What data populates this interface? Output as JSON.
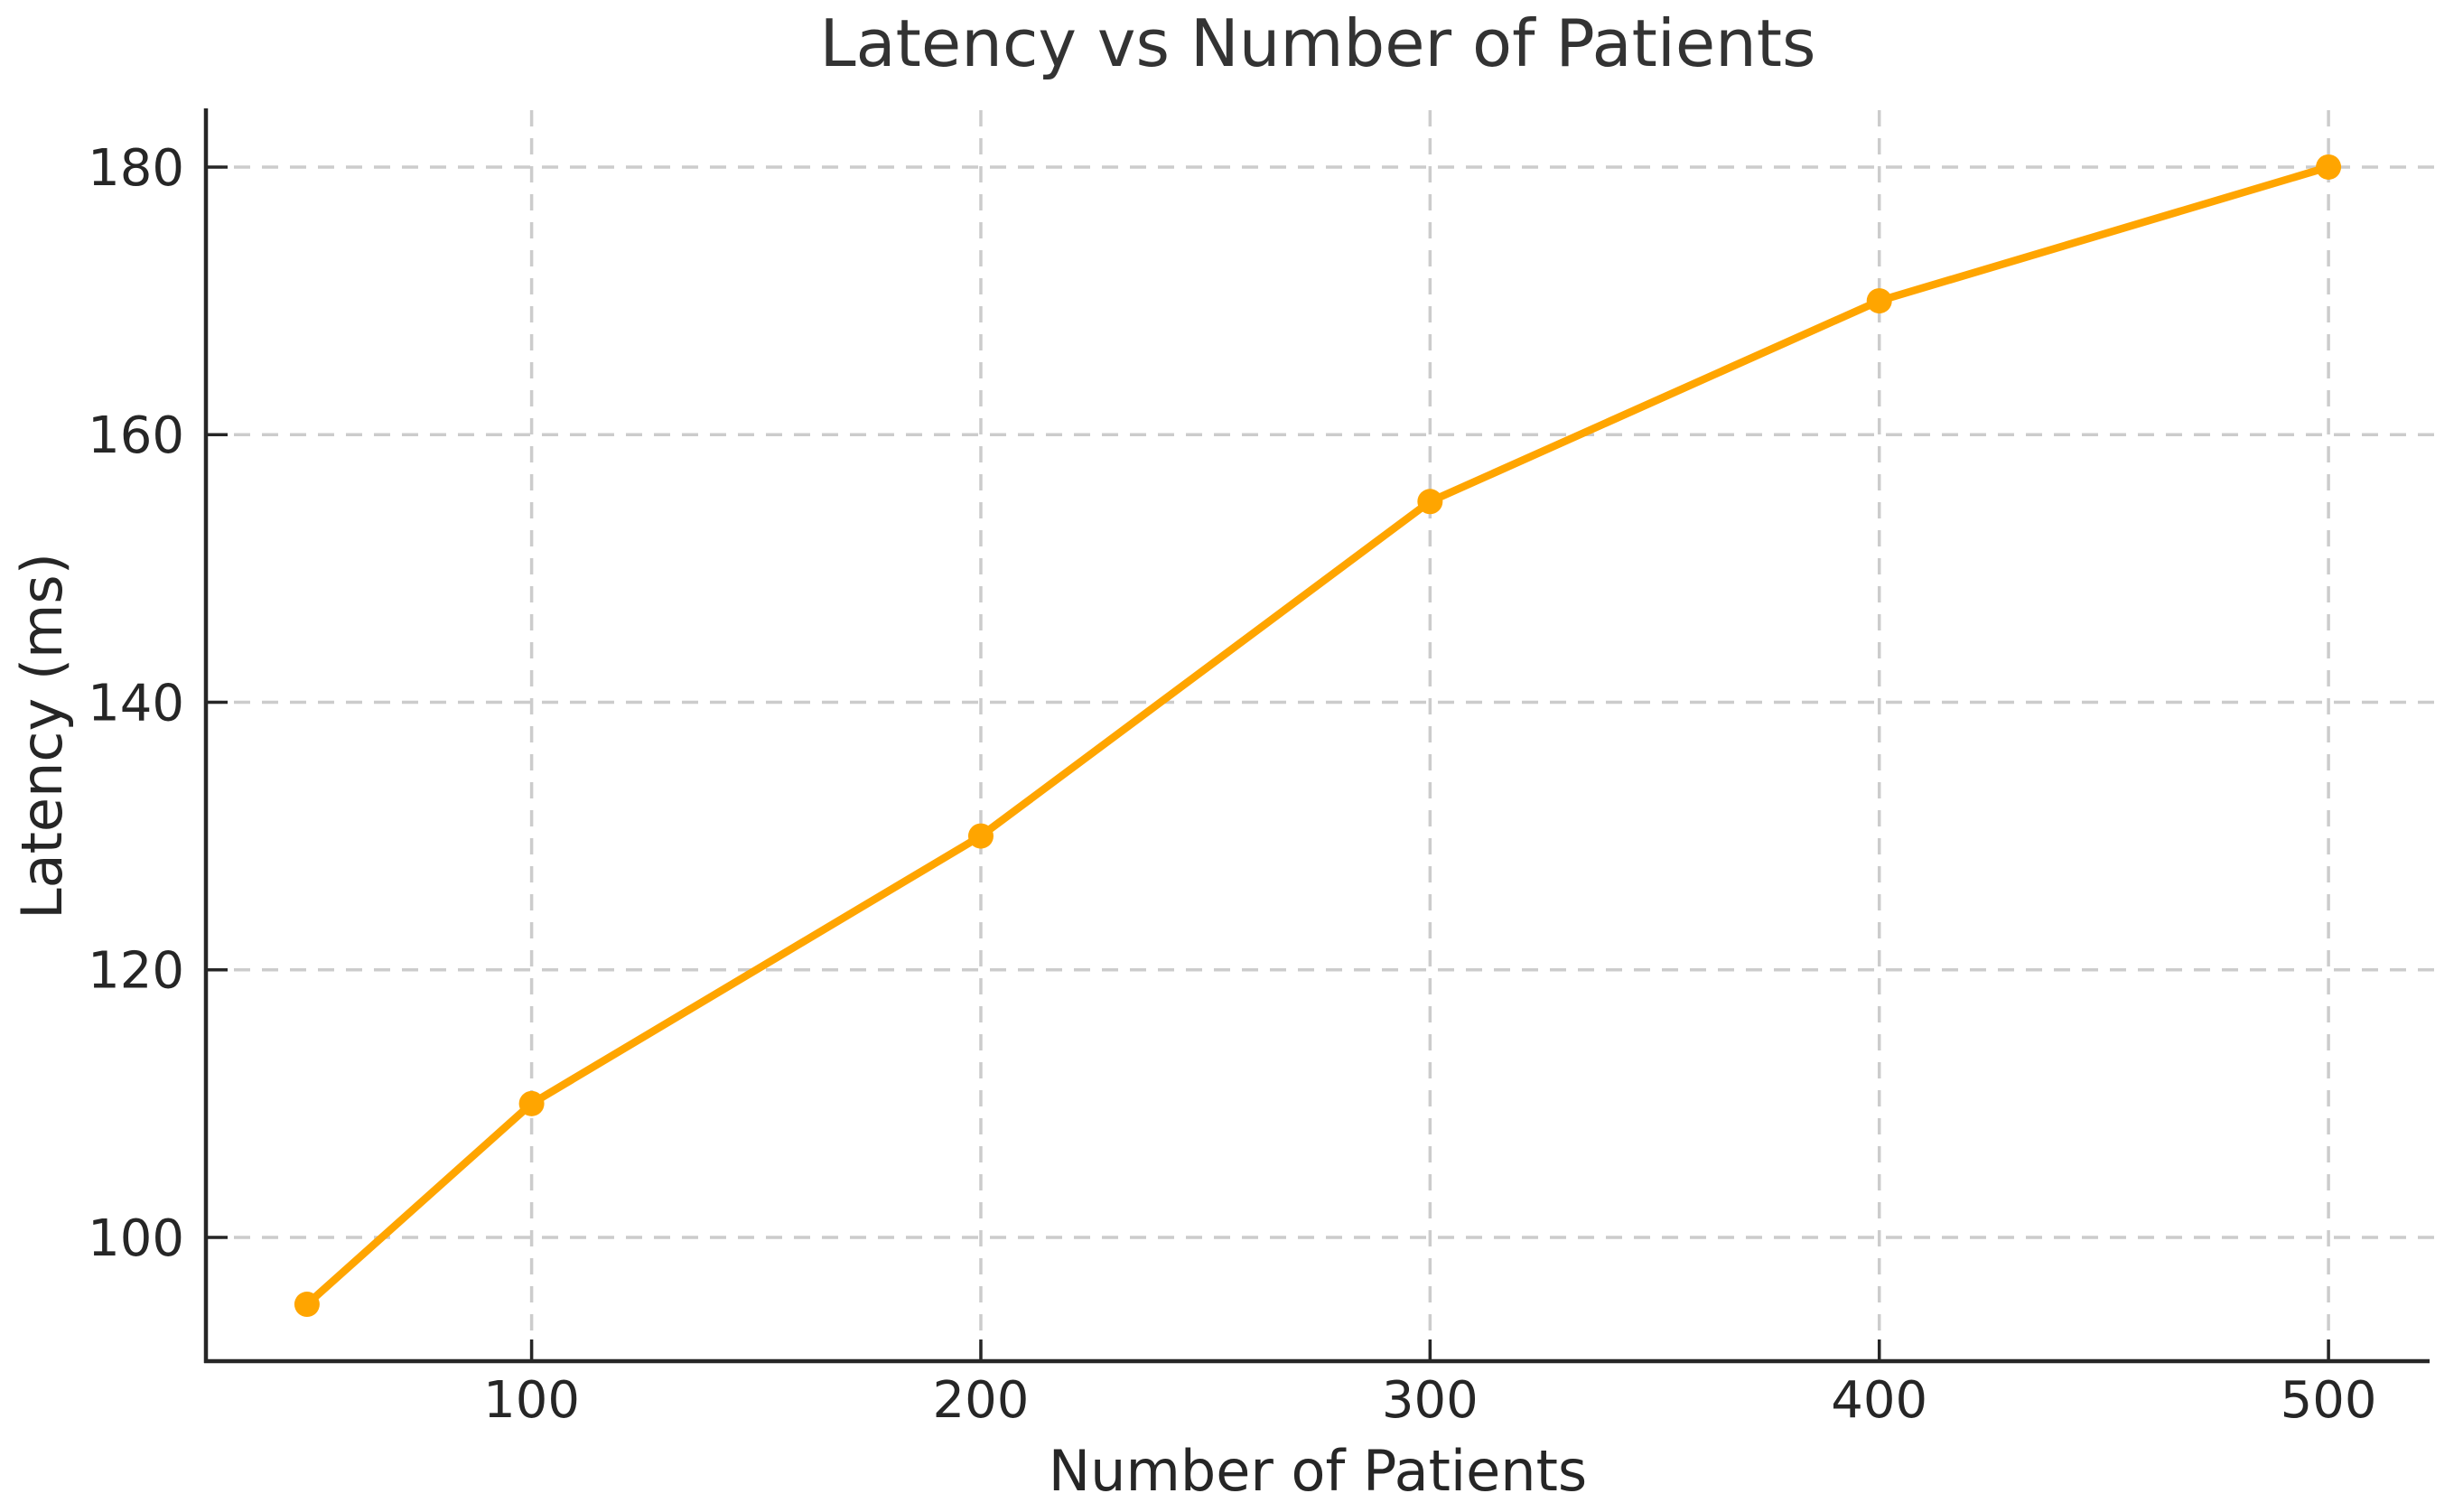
{
  "chart_data": {
    "type": "line",
    "title": "Latency vs Number of Patients",
    "xlabel": "Number of Patients",
    "ylabel": "Latency (ms)",
    "series": [
      {
        "name": "Latency",
        "x": [
          50,
          100,
          200,
          300,
          400,
          500
        ],
        "y": [
          95,
          110,
          130,
          155,
          170,
          180
        ]
      }
    ],
    "xticks": [
      100,
      200,
      300,
      400,
      500
    ],
    "yticks": [
      100,
      120,
      140,
      160,
      180
    ],
    "xlim": [
      27.5,
      522.5
    ],
    "ylim": [
      90.75,
      184.25
    ],
    "grid": true,
    "grid_style": "dashed",
    "legend": "none",
    "colors": {
      "line": "#FFA500",
      "marker": "#FFA500",
      "grid": "#cccccc",
      "spine": "#262626",
      "tick": "#262626",
      "text": "#333333",
      "background": "#ffffff"
    }
  }
}
